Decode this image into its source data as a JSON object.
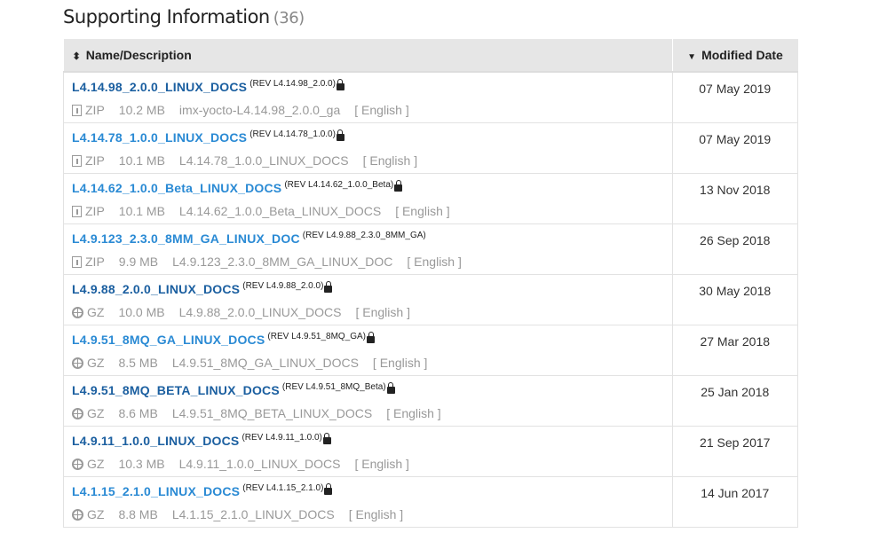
{
  "header": {
    "title": "Supporting Information",
    "count": "(36)"
  },
  "table": {
    "columns": [
      {
        "label": "Name/Description",
        "sort_icon": "sort-both-icon"
      },
      {
        "label": "Modified Date",
        "sort_icon": "sort-desc-icon"
      }
    ],
    "colors": {
      "link": "#2a8ad4",
      "link_visited": "#1b5fa0",
      "meta": "#999999"
    },
    "rows": [
      {
        "name": "L4.14.98_2.0.0_LINUX_DOCS",
        "rev": "(REV L4.14.98_2.0.0)",
        "locked": true,
        "visited": true,
        "type": "ZIP",
        "size": "10.2 MB",
        "desc": "imx-yocto-L4.14.98_2.0.0_ga",
        "lang": "[ English ]",
        "date": "07 May 2019"
      },
      {
        "name": "L4.14.78_1.0.0_LINUX_DOCS",
        "rev": "(REV L4.14.78_1.0.0)",
        "locked": true,
        "visited": false,
        "type": "ZIP",
        "size": "10.1 MB",
        "desc": "L4.14.78_1.0.0_LINUX_DOCS",
        "lang": "[ English ]",
        "date": "07 May 2019"
      },
      {
        "name": "L4.14.62_1.0.0_Beta_LINUX_DOCS",
        "rev": "(REV L4.14.62_1.0.0_Beta)",
        "locked": true,
        "visited": false,
        "type": "ZIP",
        "size": "10.1 MB",
        "desc": "L4.14.62_1.0.0_Beta_LINUX_DOCS",
        "lang": "[ English ]",
        "date": "13 Nov 2018"
      },
      {
        "name": "L4.9.123_2.3.0_8MM_GA_LINUX_DOC",
        "rev": "(REV L4.9.88_2.3.0_8MM_GA)",
        "locked": false,
        "visited": false,
        "type": "ZIP",
        "size": "9.9 MB",
        "desc": "L4.9.123_2.3.0_8MM_GA_LINUX_DOC",
        "lang": "[ English ]",
        "date": "26 Sep 2018"
      },
      {
        "name": "L4.9.88_2.0.0_LINUX_DOCS",
        "rev": "(REV L4.9.88_2.0.0)",
        "locked": true,
        "visited": true,
        "type": "GZ",
        "size": "10.0 MB",
        "desc": "L4.9.88_2.0.0_LINUX_DOCS",
        "lang": "[ English ]",
        "date": "30 May 2018"
      },
      {
        "name": "L4.9.51_8MQ_GA_LINUX_DOCS",
        "rev": "(REV L4.9.51_8MQ_GA)",
        "locked": true,
        "visited": false,
        "type": "GZ",
        "size": "8.5 MB",
        "desc": "L4.9.51_8MQ_GA_LINUX_DOCS",
        "lang": "[ English ]",
        "date": "27 Mar 2018"
      },
      {
        "name": "L4.9.51_8MQ_BETA_LINUX_DOCS",
        "rev": "(REV L4.9.51_8MQ_Beta)",
        "locked": true,
        "visited": true,
        "type": "GZ",
        "size": "8.6 MB",
        "desc": "L4.9.51_8MQ_BETA_LINUX_DOCS",
        "lang": "[ English ]",
        "date": "25 Jan 2018"
      },
      {
        "name": "L4.9.11_1.0.0_LINUX_DOCS",
        "rev": "(REV L4.9.11_1.0.0)",
        "locked": true,
        "visited": true,
        "type": "GZ",
        "size": "10.3 MB",
        "desc": "L4.9.11_1.0.0_LINUX_DOCS",
        "lang": "[ English ]",
        "date": "21 Sep 2017"
      },
      {
        "name": "L4.1.15_2.1.0_LINUX_DOCS",
        "rev": "(REV L4.1.15_2.1.0)",
        "locked": true,
        "visited": false,
        "type": "GZ",
        "size": "8.8 MB",
        "desc": "L4.1.15_2.1.0_LINUX_DOCS",
        "lang": "[ English ]",
        "date": "14 Jun 2017"
      }
    ]
  }
}
